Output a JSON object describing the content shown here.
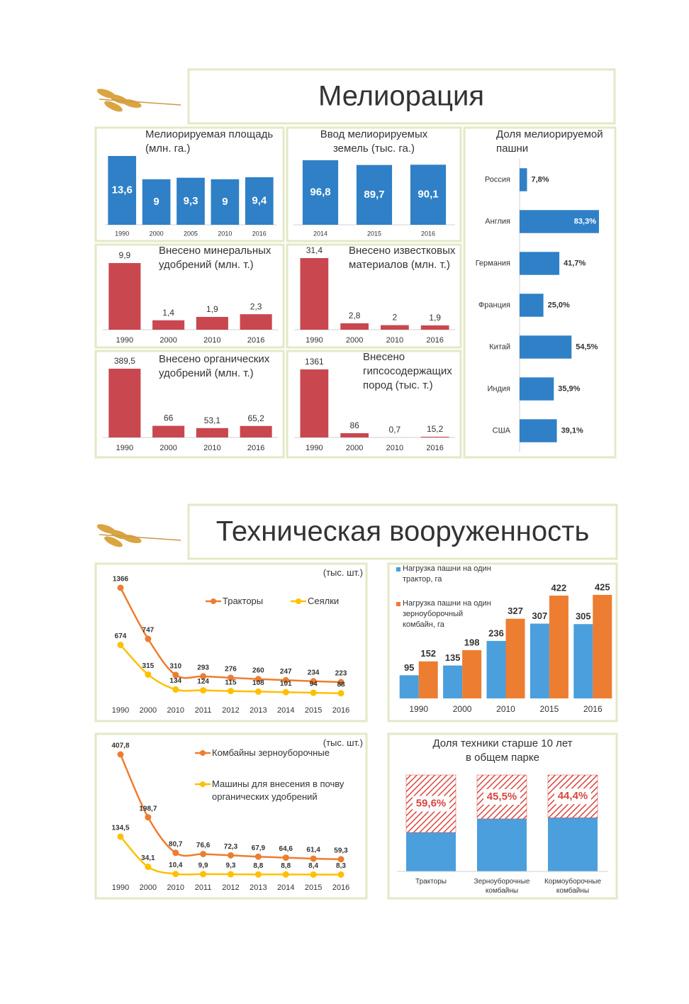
{
  "headers": [
    "Мелиорация",
    "Техническая вооруженность"
  ],
  "chart_data": [
    {
      "type": "bar",
      "title": "Мелиорируемая площадь\n(млн. га.)",
      "categories": [
        "1990",
        "2000",
        "2005",
        "2010",
        "2016"
      ],
      "values": [
        13.6,
        9,
        9.3,
        9,
        9.4
      ],
      "value_labels": [
        "13,6",
        "9",
        "9,3",
        "9",
        "9,4"
      ],
      "color": "#2f80c6"
    },
    {
      "type": "bar",
      "title": "Ввод мелиорируемых\nземель (тыс. га.)",
      "categories": [
        "2014",
        "2015",
        "2016"
      ],
      "values": [
        96.8,
        89.7,
        90.1
      ],
      "value_labels": [
        "96,8",
        "89,7",
        "90,1"
      ],
      "color": "#2f80c6"
    },
    {
      "type": "barh",
      "title": "Доля мелиорируемой\nпашни",
      "categories": [
        "Россия",
        "Англия",
        "Германия",
        "Франция",
        "Китай",
        "Индия",
        "США"
      ],
      "values": [
        7.8,
        83.3,
        41.7,
        25.0,
        54.5,
        35.9,
        39.1
      ],
      "value_labels": [
        "7,8%",
        "83,3%",
        "41,7%",
        "25,0%",
        "54,5%",
        "35,9%",
        "39,1%"
      ],
      "color": "#2f80c6"
    },
    {
      "type": "bar",
      "title": "Внесено минеральных\nудобрений (млн. т.)",
      "categories": [
        "1990",
        "2000",
        "2010",
        "2016"
      ],
      "values": [
        9.9,
        1.4,
        1.9,
        2.3
      ],
      "value_labels": [
        "9,9",
        "1,4",
        "1,9",
        "2,3"
      ],
      "color": "#c9474f"
    },
    {
      "type": "bar",
      "title": "Внесено известковых\nматериалов (млн. т.)",
      "categories": [
        "1990",
        "2000",
        "2010",
        "2016"
      ],
      "values": [
        31.4,
        2.8,
        2,
        1.9
      ],
      "value_labels": [
        "31,4",
        "2,8",
        "2",
        "1,9"
      ],
      "color": "#c9474f"
    },
    {
      "type": "bar",
      "title": "Внесено органических\nудобрений (млн. т.)",
      "categories": [
        "1990",
        "2000",
        "2010",
        "2016"
      ],
      "values": [
        389.5,
        66,
        53.1,
        65.2
      ],
      "value_labels": [
        "389,5",
        "66",
        "53,1",
        "65,2"
      ],
      "color": "#c9474f"
    },
    {
      "type": "bar",
      "title": "Внесено\nгипсосодержащих\nпород (тыс. т.)",
      "categories": [
        "1990",
        "2000",
        "2010",
        "2016"
      ],
      "values": [
        1361,
        86,
        0.7,
        15.2
      ],
      "value_labels": [
        "1361",
        "86",
        "0,7",
        "15,2"
      ],
      "color": "#c9474f"
    },
    {
      "type": "line",
      "annotation": "(тыс. шт.)",
      "categories": [
        "1990",
        "2000",
        "2010",
        "2011",
        "2012",
        "2013",
        "2014",
        "2015",
        "2016"
      ],
      "series": [
        {
          "name": "Тракторы",
          "color": "#ed7d31",
          "values": [
            1366,
            747,
            310,
            293,
            276,
            260,
            247,
            234,
            223
          ]
        },
        {
          "name": "Сеялки",
          "color": "#ffc000",
          "values": [
            674,
            315,
            134,
            124,
            115,
            108,
            101,
            94,
            88
          ]
        }
      ]
    },
    {
      "type": "grouped_bar",
      "categories": [
        "1990",
        "2000",
        "2010",
        "2015",
        "2016"
      ],
      "series": [
        {
          "name": "Нагрузка пашни на один\nтрактор, га",
          "color": "#4a9fdc",
          "values": [
            95,
            135,
            236,
            307,
            305
          ]
        },
        {
          "name": "Нагрузка пашни на один\nзерноуборочный\nкомбайн, га",
          "color": "#ed7d31",
          "values": [
            152,
            198,
            327,
            422,
            425
          ]
        }
      ]
    },
    {
      "type": "line",
      "annotation": "(тыс. шт.)",
      "categories": [
        "1990",
        "2000",
        "2010",
        "2011",
        "2012",
        "2013",
        "2014",
        "2015",
        "2016"
      ],
      "series": [
        {
          "name": "Комбайны зерноуборочные",
          "color": "#ed7d31",
          "values": [
            407.8,
            198.7,
            80.7,
            76.6,
            72.3,
            67.9,
            64.6,
            61.4,
            59.3
          ],
          "value_labels": [
            "407,8",
            "198,7",
            "80,7",
            "76,6",
            "72,3",
            "67,9",
            "64,6",
            "61,4",
            "59,3"
          ]
        },
        {
          "name": "Машины для внесения в почву\nорганических удобрений",
          "color": "#ffc000",
          "values": [
            134.5,
            34.1,
            10.4,
            9.9,
            9.3,
            8.8,
            8.8,
            8.4,
            8.3
          ],
          "value_labels": [
            "134,5",
            "34,1",
            "10,4",
            "9,9",
            "9,3",
            "8,8",
            "8,8",
            "8,4",
            "8,3"
          ]
        }
      ]
    },
    {
      "type": "share_bar",
      "title": "Доля техники старше 10 лет\nв общем парке",
      "categories": [
        "Тракторы",
        "Зерноуборочные\nкомбайны",
        "Кормоуборочные\nкомбайны"
      ],
      "values": [
        59.6,
        45.5,
        44.4
      ],
      "value_labels": [
        "59,6%",
        "45,5%",
        "44,4%"
      ],
      "color": "#d9453f",
      "base_color": "#4a9fdc",
      "ylim": [
        0,
        100
      ]
    }
  ]
}
